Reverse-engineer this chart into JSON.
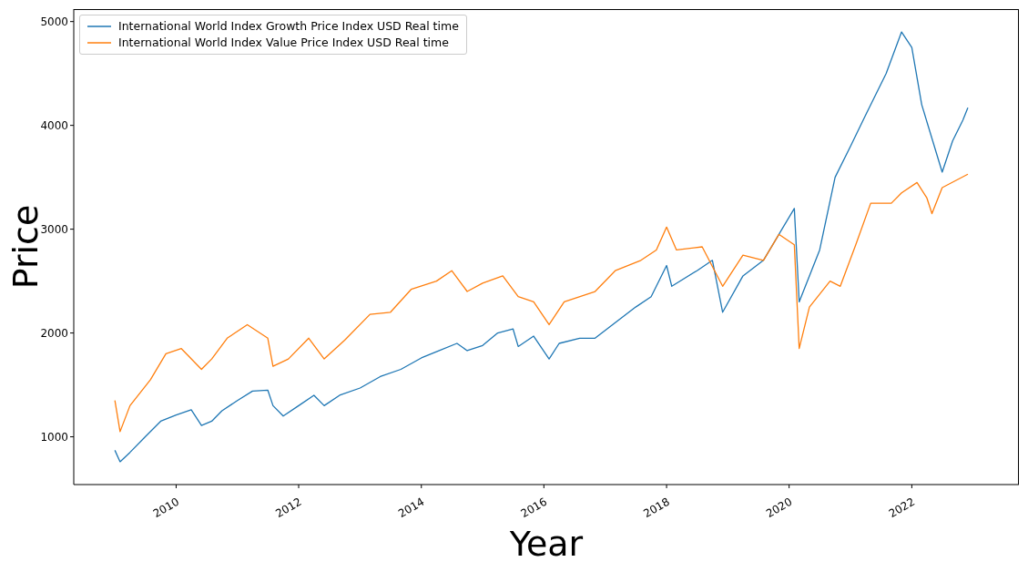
{
  "chart_data": {
    "type": "line",
    "xlabel": "Year",
    "ylabel": "Price",
    "xlim": [
      "2008-05",
      "2023-10"
    ],
    "xticks": [
      "2010",
      "2012",
      "2014",
      "2016",
      "2018",
      "2020",
      "2022"
    ],
    "ylim": [
      540,
      5120
    ],
    "yticks": [
      1000,
      2000,
      3000,
      4000,
      5000
    ],
    "legend": "top left",
    "marker": "none",
    "line_style": "solid",
    "series": [
      {
        "name": "International World Index Growth Price Index USD Real time",
        "color": "#1f77b4",
        "x": [
          "2009-01",
          "2009-02",
          "2009-04",
          "2009-07",
          "2009-10",
          "2010-01",
          "2010-04",
          "2010-06",
          "2010-08",
          "2010-10",
          "2011-01",
          "2011-04",
          "2011-07",
          "2011-08",
          "2011-10",
          "2012-01",
          "2012-04",
          "2012-06",
          "2012-09",
          "2013-01",
          "2013-05",
          "2013-09",
          "2014-01",
          "2014-04",
          "2014-08",
          "2014-10",
          "2015-01",
          "2015-04",
          "2015-07",
          "2015-08",
          "2015-11",
          "2016-02",
          "2016-04",
          "2016-08",
          "2016-11",
          "2017-03",
          "2017-07",
          "2017-10",
          "2018-01",
          "2018-02",
          "2018-07",
          "2018-10",
          "2018-12",
          "2019-04",
          "2019-08",
          "2019-11",
          "2020-02",
          "2020-03",
          "2020-07",
          "2020-10",
          "2021-01",
          "2021-04",
          "2021-08",
          "2021-11",
          "2022-01",
          "2022-03",
          "2022-07",
          "2022-09",
          "2022-11",
          "2022-12"
        ],
        "values": [
          870,
          760,
          850,
          1000,
          1150,
          1210,
          1260,
          1110,
          1150,
          1250,
          1350,
          1440,
          1450,
          1300,
          1200,
          1300,
          1400,
          1300,
          1400,
          1470,
          1580,
          1650,
          1760,
          1820,
          1900,
          1830,
          1880,
          2000,
          2040,
          1870,
          1970,
          1750,
          1900,
          1950,
          1950,
          2100,
          2250,
          2350,
          2650,
          2450,
          2600,
          2700,
          2200,
          2550,
          2700,
          2950,
          3200,
          2300,
          2800,
          3500,
          3800,
          4100,
          4500,
          4900,
          4750,
          4200,
          3550,
          3850,
          4050,
          4170
        ]
      },
      {
        "name": "International World Index Value Price Index USD Real time",
        "color": "#ff7f0e",
        "x": [
          "2009-01",
          "2009-02",
          "2009-04",
          "2009-08",
          "2009-11",
          "2010-02",
          "2010-06",
          "2010-08",
          "2010-11",
          "2011-03",
          "2011-07",
          "2011-08",
          "2011-11",
          "2012-03",
          "2012-06",
          "2012-10",
          "2013-03",
          "2013-07",
          "2013-11",
          "2014-04",
          "2014-07",
          "2014-10",
          "2015-01",
          "2015-05",
          "2015-08",
          "2015-11",
          "2016-02",
          "2016-05",
          "2016-11",
          "2017-03",
          "2017-08",
          "2017-11",
          "2018-01",
          "2018-03",
          "2018-08",
          "2018-12",
          "2019-04",
          "2019-08",
          "2019-11",
          "2020-02",
          "2020-03",
          "2020-05",
          "2020-09",
          "2020-11",
          "2021-02",
          "2021-05",
          "2021-09",
          "2021-11",
          "2022-02",
          "2022-04",
          "2022-05",
          "2022-07",
          "2022-12"
        ],
        "values": [
          1350,
          1050,
          1300,
          1550,
          1800,
          1850,
          1650,
          1750,
          1950,
          2080,
          1950,
          1680,
          1750,
          1950,
          1750,
          1930,
          2180,
          2200,
          2420,
          2500,
          2600,
          2400,
          2480,
          2550,
          2350,
          2300,
          2080,
          2300,
          2400,
          2600,
          2700,
          2800,
          3020,
          2800,
          2830,
          2450,
          2750,
          2700,
          2950,
          2850,
          1850,
          2250,
          2500,
          2450,
          2850,
          3250,
          3250,
          3350,
          3450,
          3300,
          3150,
          3400,
          3530
        ]
      }
    ]
  }
}
